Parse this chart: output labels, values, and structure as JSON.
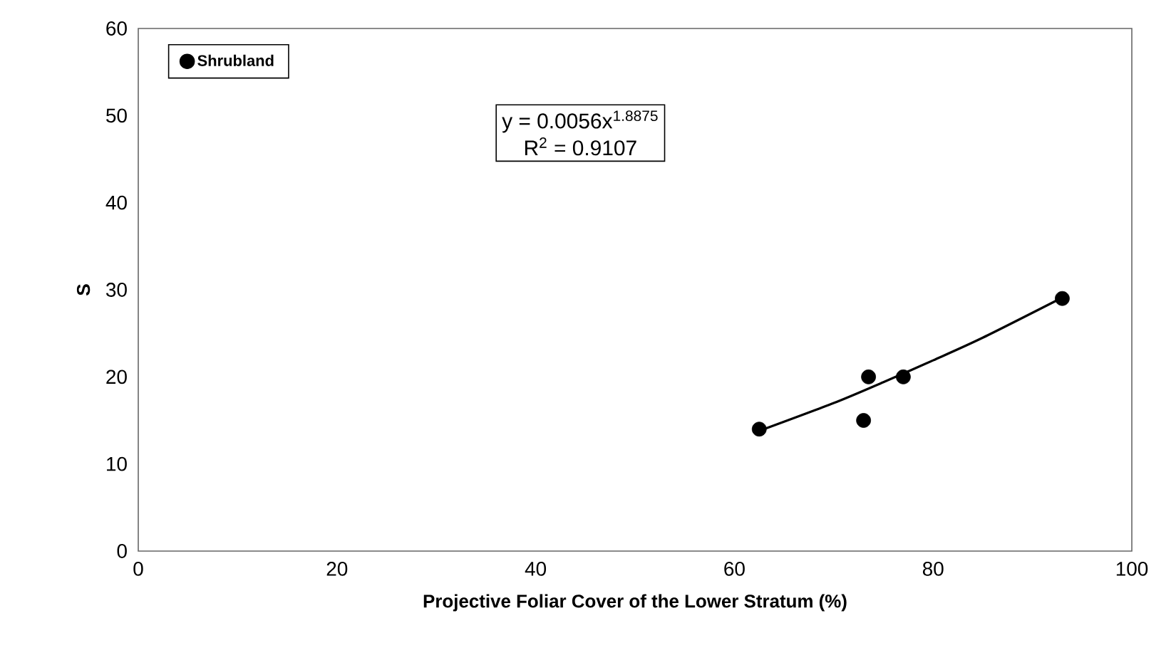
{
  "chart_data": {
    "type": "scatter",
    "xlabel": "Projective Foliar Cover of the Lower Stratum (%)",
    "ylabel": "S",
    "xlim": [
      0,
      100
    ],
    "ylim": [
      0,
      60
    ],
    "xticks": [
      0,
      20,
      40,
      60,
      80,
      100
    ],
    "yticks": [
      0,
      10,
      20,
      30,
      40,
      50,
      60
    ],
    "legend": "top left",
    "series": [
      {
        "name": "Shrubland",
        "color": "#000000",
        "x": [
          62.5,
          73.5,
          73,
          77,
          93
        ],
        "values": [
          14,
          20,
          15,
          20,
          29
        ]
      },
      {
        "type": "line",
        "color": "#000000",
        "x": [
          62.5,
          70,
          75,
          80,
          85,
          93
        ],
        "values": [
          13.8,
          17.0,
          19.4,
          21.9,
          24.5,
          29.1
        ]
      }
    ],
    "annotations": [
      "y = 0.0056x$^{1.8875}$",
      "R$^{2}$ = 0.9107"
    ]
  }
}
